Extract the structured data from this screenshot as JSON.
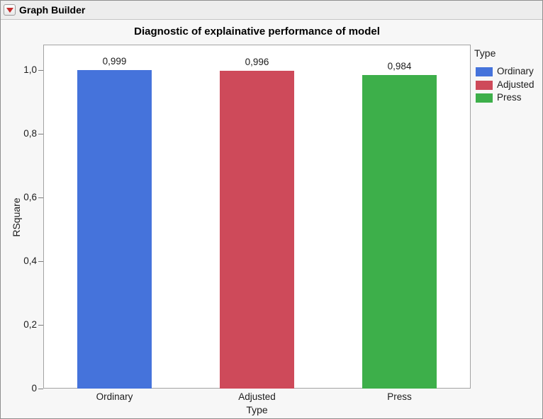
{
  "window": {
    "title": "Graph Builder"
  },
  "header": {
    "disclosure_icon": "red-triangle-down-icon"
  },
  "chart_data": {
    "type": "bar",
    "title": "Diagnostic of explainative performance of model",
    "xlabel": "Type",
    "ylabel": "RSquare",
    "categories": [
      "Ordinary",
      "Adjusted",
      "Press"
    ],
    "values": [
      0.999,
      0.996,
      0.984
    ],
    "value_labels": [
      "0,999",
      "0,996",
      "0,984"
    ],
    "ylim": [
      0,
      1.08
    ],
    "yticks": [
      0,
      0.2,
      0.4,
      0.6,
      0.8,
      1.0
    ],
    "ytick_labels": [
      "0",
      "0,2",
      "0,4",
      "0,6",
      "0,8",
      "1,0"
    ],
    "grid": false,
    "legend": {
      "title": "Type",
      "position": "right",
      "entries": [
        {
          "label": "Ordinary",
          "color": "#4573DB"
        },
        {
          "label": "Adjusted",
          "color": "#CE4A5A"
        },
        {
          "label": "Press",
          "color": "#3DAF4A"
        }
      ]
    }
  }
}
